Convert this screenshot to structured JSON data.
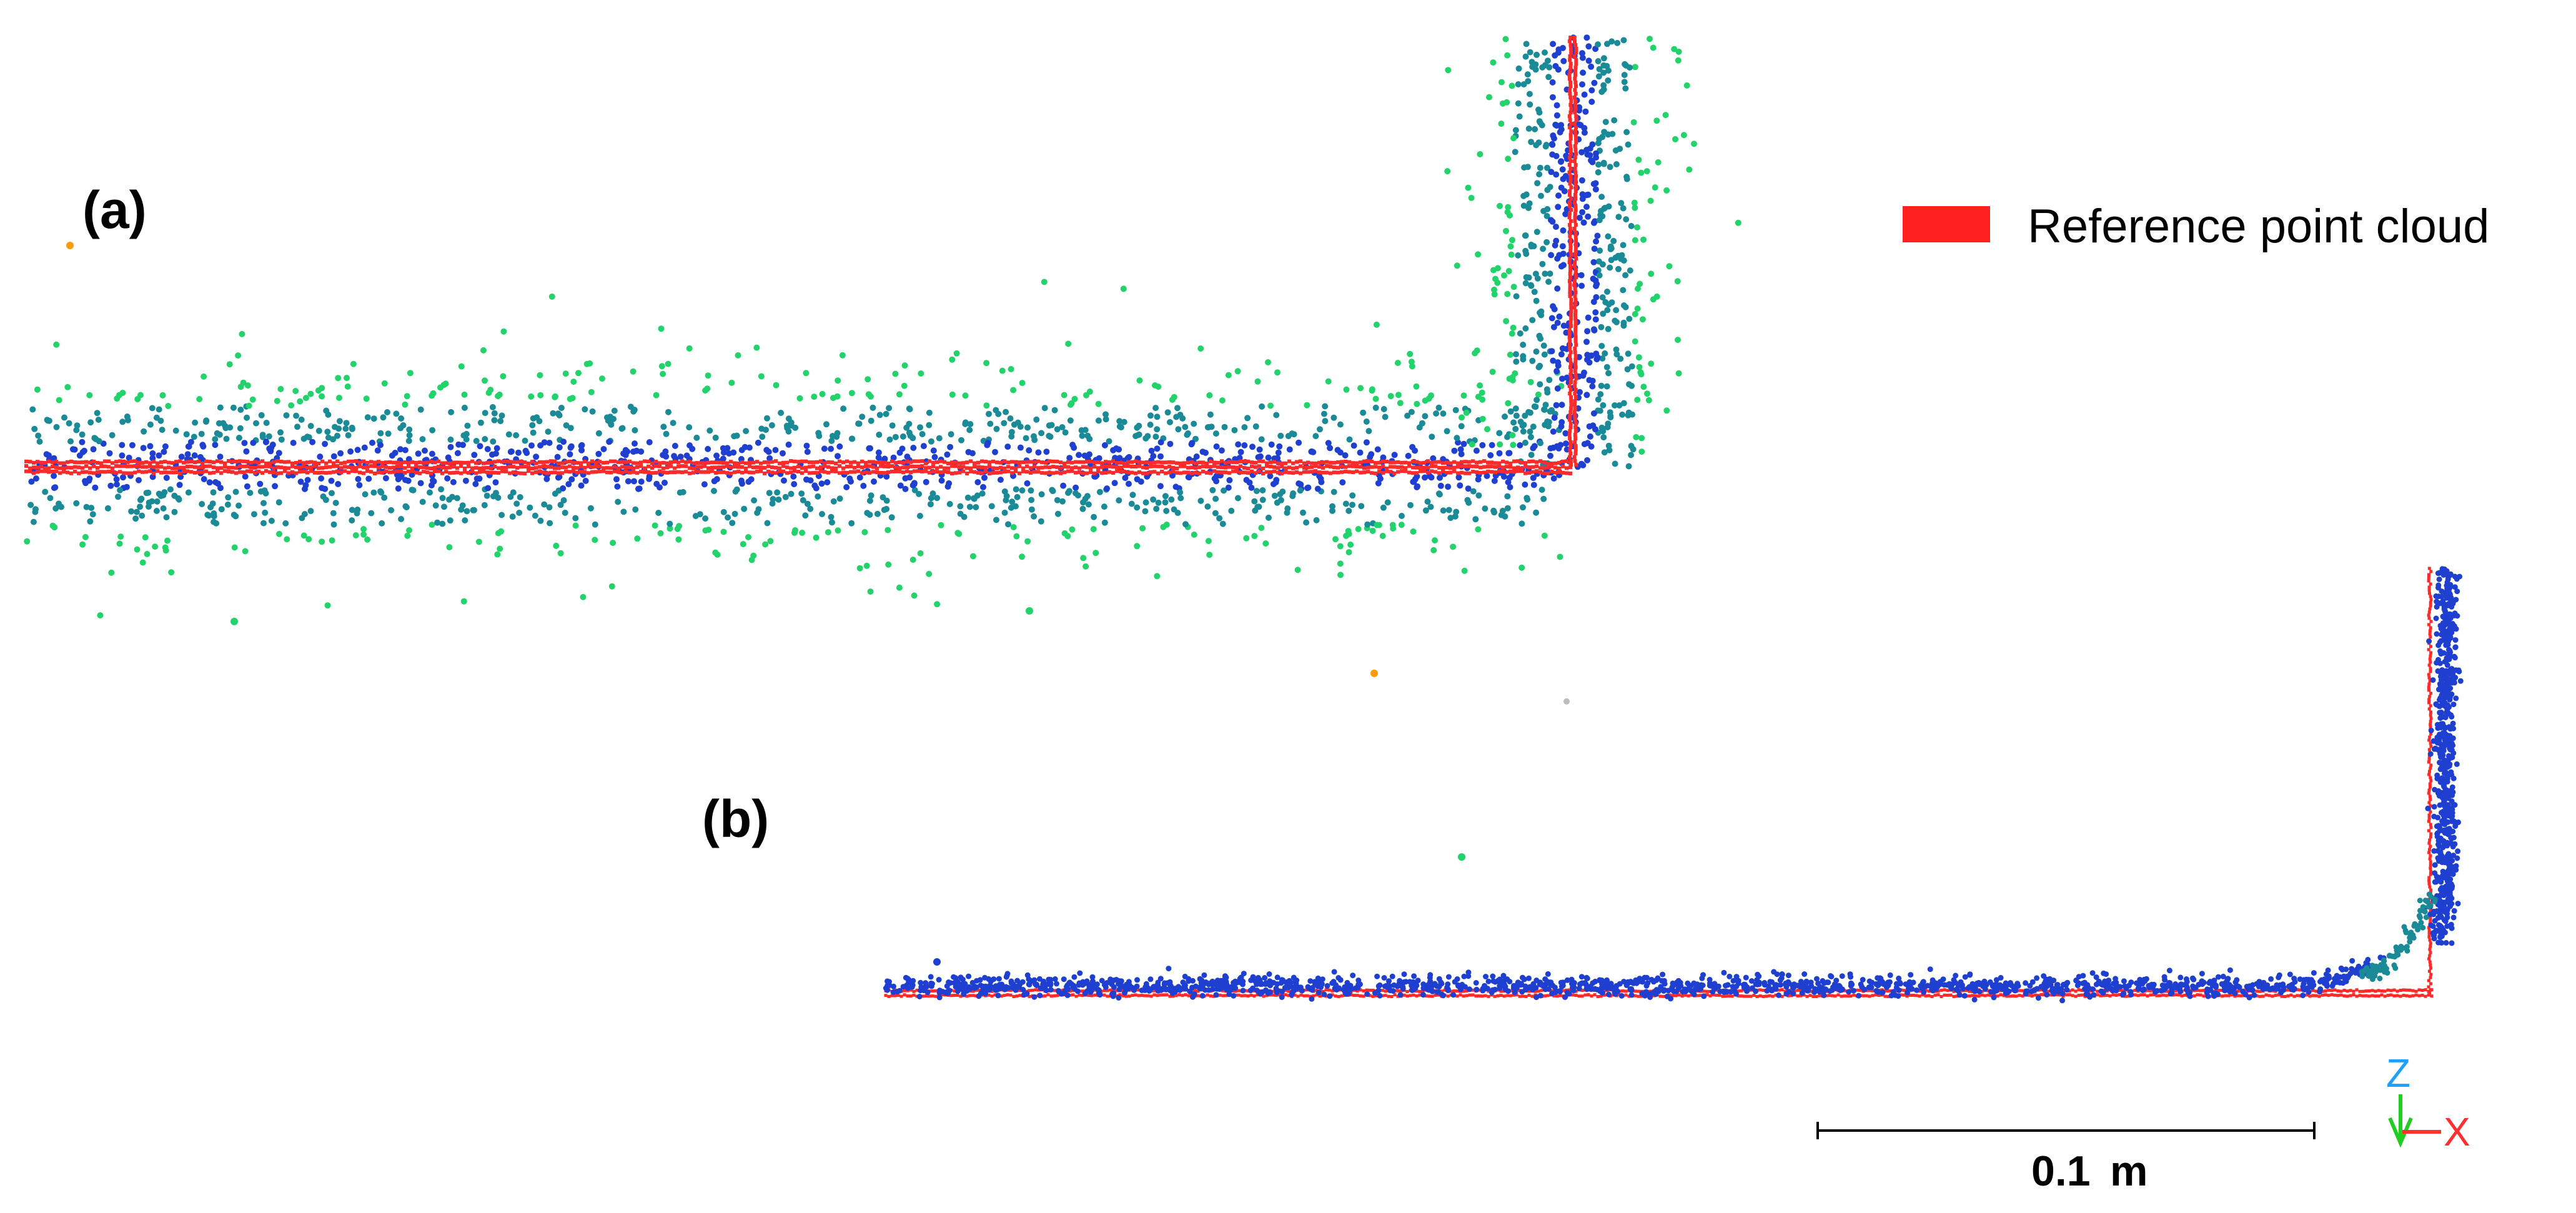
{
  "panels": [
    {
      "label": "(a)"
    },
    {
      "label": "(b)"
    }
  ],
  "legend": {
    "label": "Reference point cloud",
    "color": "#ff2020"
  },
  "scale_bar": {
    "label": "0.1",
    "unit": "m"
  },
  "axes_gizmo": {
    "z_label": "Z",
    "x_label": "X",
    "z_color": "#1ea0ff",
    "x_color": "#ff3030",
    "y_color": "#22cc22"
  },
  "colors": {
    "reference": "#ff2a2a",
    "near_points": "#1f3fd0",
    "mid_points": "#1a8a96",
    "far_points": "#22d26a",
    "outlier_orange": "#ff9a00"
  }
}
